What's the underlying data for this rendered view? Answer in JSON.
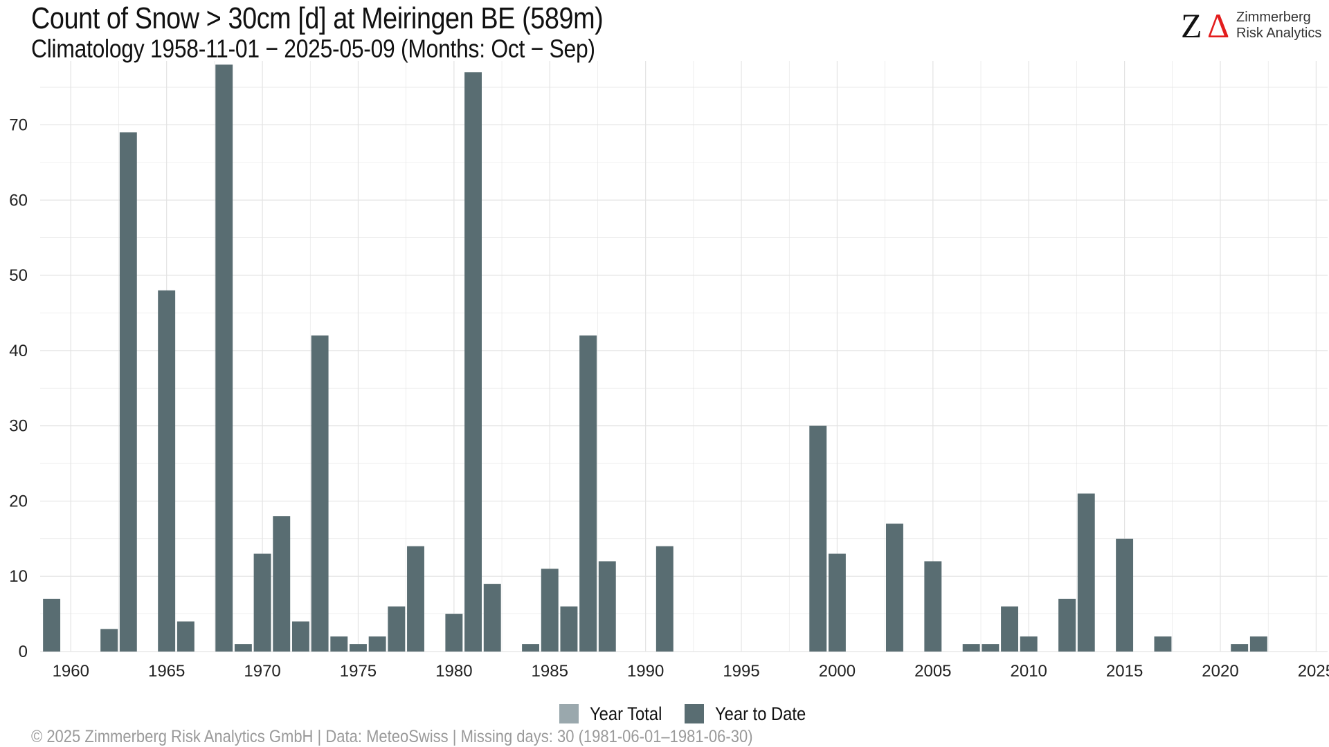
{
  "header": {
    "title": "Count of Snow > 30cm [d] at Meiringen  BE (589m)",
    "subtitle": "Climatology 1958-11-01 − 2025-05-09 (Months: Oct − Sep)"
  },
  "logo": {
    "mark_left": "Z",
    "mark_right": "Δ",
    "line1": "Zimmerberg",
    "line2": "Risk Analytics",
    "mark_color": "#e31d1d"
  },
  "footer": {
    "caption": "©  2025 Zimmerberg Risk Analytics GmbH | Data: MeteoSwiss | Missing days: 30 (1981-06-01–1981-06-30)"
  },
  "chart_data": {
    "type": "bar",
    "title": "Count of Snow > 30cm [d] at Meiringen  BE (589m)",
    "subtitle": "Climatology 1958-11-01 − 2025-05-09 (Months: Oct − Sep)",
    "xlabel": "",
    "ylabel": "",
    "xlim": [
      1958.4,
      2025.6
    ],
    "ylim": [
      0,
      78.5
    ],
    "x_ticks": [
      1960,
      1965,
      1970,
      1975,
      1980,
      1985,
      1990,
      1995,
      2000,
      2005,
      2010,
      2015,
      2020,
      2025
    ],
    "y_ticks": [
      0,
      10,
      20,
      30,
      40,
      50,
      60,
      70
    ],
    "grid": true,
    "legend_position": "bottom",
    "colors": {
      "year_total": "#9aa8ad",
      "year_to_date": "#596d72",
      "grid": "#e3e3e3"
    },
    "series": [
      {
        "name": "Year Total",
        "color": "#9aa8ad",
        "points": []
      },
      {
        "name": "Year to Date",
        "color": "#596d72",
        "points": [
          {
            "x": 1959,
            "y": 7
          },
          {
            "x": 1962,
            "y": 3
          },
          {
            "x": 1963,
            "y": 69
          },
          {
            "x": 1965,
            "y": 48
          },
          {
            "x": 1966,
            "y": 4
          },
          {
            "x": 1968,
            "y": 78
          },
          {
            "x": 1969,
            "y": 1
          },
          {
            "x": 1970,
            "y": 13
          },
          {
            "x": 1971,
            "y": 18
          },
          {
            "x": 1972,
            "y": 4
          },
          {
            "x": 1973,
            "y": 42
          },
          {
            "x": 1974,
            "y": 2
          },
          {
            "x": 1975,
            "y": 1
          },
          {
            "x": 1976,
            "y": 2
          },
          {
            "x": 1977,
            "y": 6
          },
          {
            "x": 1978,
            "y": 14
          },
          {
            "x": 1980,
            "y": 5
          },
          {
            "x": 1981,
            "y": 77
          },
          {
            "x": 1982,
            "y": 9
          },
          {
            "x": 1984,
            "y": 1
          },
          {
            "x": 1985,
            "y": 11
          },
          {
            "x": 1986,
            "y": 6
          },
          {
            "x": 1987,
            "y": 42
          },
          {
            "x": 1988,
            "y": 12
          },
          {
            "x": 1991,
            "y": 14
          },
          {
            "x": 1999,
            "y": 30
          },
          {
            "x": 2000,
            "y": 13
          },
          {
            "x": 2003,
            "y": 17
          },
          {
            "x": 2005,
            "y": 12
          },
          {
            "x": 2007,
            "y": 1
          },
          {
            "x": 2008,
            "y": 1
          },
          {
            "x": 2009,
            "y": 6
          },
          {
            "x": 2010,
            "y": 2
          },
          {
            "x": 2012,
            "y": 7
          },
          {
            "x": 2013,
            "y": 21
          },
          {
            "x": 2015,
            "y": 15
          },
          {
            "x": 2017,
            "y": 2
          },
          {
            "x": 2021,
            "y": 1
          },
          {
            "x": 2022,
            "y": 2
          }
        ]
      }
    ]
  }
}
